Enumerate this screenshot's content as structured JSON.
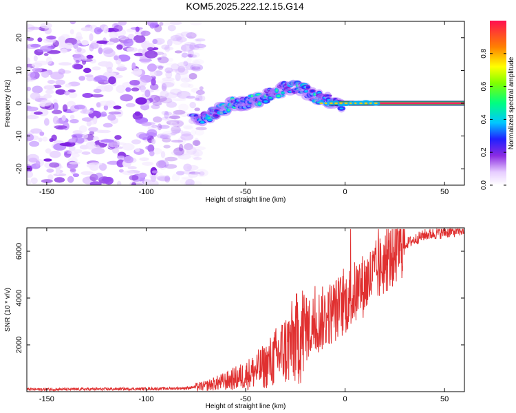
{
  "chart_data": [
    {
      "type": "heatmap",
      "title": "KOM5.2025.222.12.15.G14",
      "xlabel": "Height of straight line (km)",
      "ylabel": "Frequency (Hz)",
      "xlim": [
        -160,
        60
      ],
      "ylim": [
        -25,
        25
      ],
      "xticks": [
        -150,
        -100,
        -50,
        0,
        50
      ],
      "yticks": [
        -20,
        -10,
        0,
        10,
        20
      ],
      "colorbar": {
        "label": "Normalized spectral amplitude",
        "range": [
          0,
          1
        ],
        "ticks": [
          0.0,
          0.2,
          0.4,
          0.6,
          0.8
        ]
      },
      "ridge": {
        "description_points_km_hz": [
          [
            -72,
            -5
          ],
          [
            -65,
            -3
          ],
          [
            -60,
            -1
          ],
          [
            -55,
            0
          ],
          [
            -50,
            0
          ],
          [
            -45,
            1
          ],
          [
            -40,
            2
          ],
          [
            -35,
            3
          ],
          [
            -30,
            5
          ],
          [
            -25,
            5
          ],
          [
            -20,
            4
          ],
          [
            -15,
            2
          ],
          [
            -10,
            1
          ],
          [
            -5,
            0
          ],
          [
            0,
            0
          ],
          [
            10,
            0
          ],
          [
            20,
            0
          ],
          [
            30,
            0
          ],
          [
            40,
            0
          ],
          [
            50,
            0
          ],
          [
            60,
            0
          ]
        ]
      }
    },
    {
      "type": "line",
      "xlabel": "Height of straight line (km)",
      "ylabel": "SNR (10 * v/v)",
      "xlim": [
        -160,
        60
      ],
      "ylim": [
        0,
        7000
      ],
      "xticks": [
        -150,
        -100,
        -50,
        0,
        50
      ],
      "yticks": [
        2000,
        4000,
        6000
      ],
      "series": [
        {
          "name": "SNR",
          "color": "#e03030",
          "trend_points_km_snr": [
            [
              -160,
              100
            ],
            [
              -140,
              100
            ],
            [
              -120,
              110
            ],
            [
              -100,
              120
            ],
            [
              -80,
              150
            ],
            [
              -70,
              250
            ],
            [
              -60,
              450
            ],
            [
              -50,
              700
            ],
            [
              -40,
              1100
            ],
            [
              -30,
              1800
            ],
            [
              -20,
              2600
            ],
            [
              -10,
              3200
            ],
            [
              0,
              3800
            ],
            [
              10,
              4600
            ],
            [
              20,
              5500
            ],
            [
              30,
              6300
            ],
            [
              40,
              6700
            ],
            [
              50,
              6800
            ],
            [
              60,
              6900
            ]
          ]
        }
      ]
    }
  ]
}
